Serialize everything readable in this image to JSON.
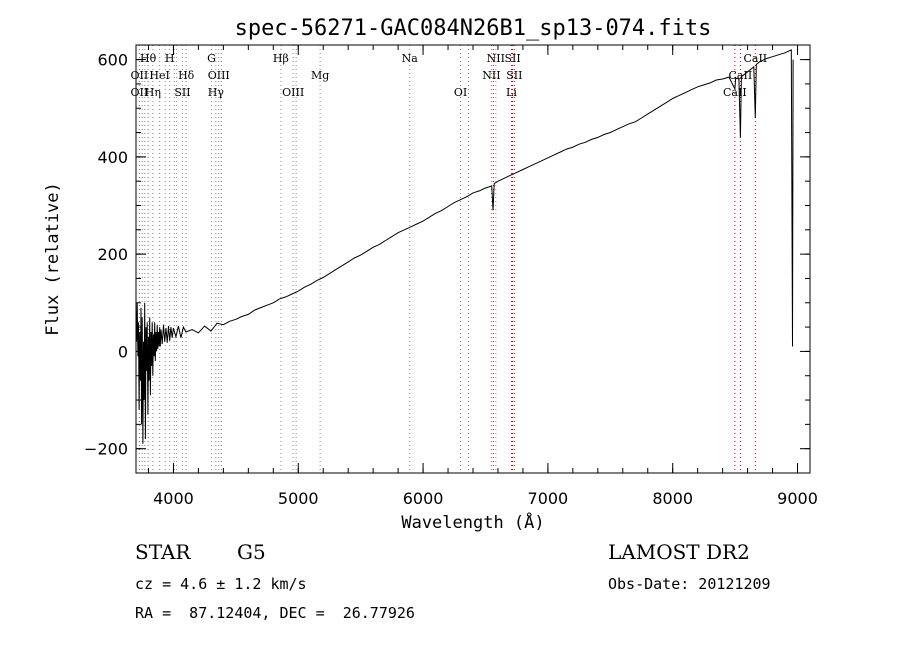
{
  "chart_data": {
    "type": "line",
    "title": "spec-56271-GAC084N26B1_sp13-074.fits",
    "xlabel": "Wavelength (Å)",
    "ylabel": "Flux (relative)",
    "xlim": [
      3700,
      9100
    ],
    "ylim": [
      -250,
      630
    ],
    "xticks": [
      4000,
      5000,
      6000,
      7000,
      8000,
      9000
    ],
    "yticks": [
      -200,
      0,
      200,
      400,
      600
    ],
    "x_minor_step": 200,
    "y_minor_step": 50,
    "grid": false,
    "series": [
      {
        "points": [
          [
            3700,
            80
          ],
          [
            3705,
            20
          ],
          [
            3710,
            100
          ],
          [
            3715,
            -10
          ],
          [
            3720,
            60
          ],
          [
            3725,
            -120
          ],
          [
            3730,
            40
          ],
          [
            3735,
            -60
          ],
          [
            3740,
            90
          ],
          [
            3745,
            -150
          ],
          [
            3750,
            70
          ],
          [
            3755,
            -190
          ],
          [
            3760,
            20
          ],
          [
            3765,
            -100
          ],
          [
            3770,
            100
          ],
          [
            3775,
            -180
          ],
          [
            3780,
            50
          ],
          [
            3785,
            -40
          ],
          [
            3790,
            60
          ],
          [
            3795,
            -130
          ],
          [
            3800,
            30
          ],
          [
            3805,
            -60
          ],
          [
            3810,
            70
          ],
          [
            3815,
            -90
          ],
          [
            3820,
            40
          ],
          [
            3825,
            -30
          ],
          [
            3830,
            60
          ],
          [
            3835,
            -50
          ],
          [
            3840,
            35
          ],
          [
            3845,
            -10
          ],
          [
            3850,
            60
          ],
          [
            3855,
            -20
          ],
          [
            3860,
            40
          ],
          [
            3865,
            0
          ],
          [
            3870,
            55
          ],
          [
            3875,
            5
          ],
          [
            3880,
            40
          ],
          [
            3885,
            10
          ],
          [
            3890,
            50
          ],
          [
            3895,
            10
          ],
          [
            3900,
            45
          ],
          [
            3910,
            15
          ],
          [
            3920,
            55
          ],
          [
            3930,
            20
          ],
          [
            3940,
            48
          ],
          [
            3950,
            18
          ],
          [
            3960,
            52
          ],
          [
            3970,
            22
          ],
          [
            3980,
            50
          ],
          [
            3990,
            28
          ],
          [
            4000,
            48
          ],
          [
            4020,
            30
          ],
          [
            4040,
            52
          ],
          [
            4060,
            28
          ],
          [
            4080,
            50
          ],
          [
            4100,
            40
          ],
          [
            4150,
            45
          ],
          [
            4200,
            38
          ],
          [
            4250,
            52
          ],
          [
            4300,
            42
          ],
          [
            4350,
            58
          ],
          [
            4400,
            55
          ],
          [
            4450,
            62
          ],
          [
            4500,
            66
          ],
          [
            4550,
            72
          ],
          [
            4600,
            76
          ],
          [
            4650,
            85
          ],
          [
            4700,
            90
          ],
          [
            4750,
            95
          ],
          [
            4800,
            100
          ],
          [
            4850,
            108
          ],
          [
            4900,
            112
          ],
          [
            4950,
            118
          ],
          [
            5000,
            124
          ],
          [
            5050,
            132
          ],
          [
            5100,
            138
          ],
          [
            5150,
            146
          ],
          [
            5200,
            152
          ],
          [
            5250,
            160
          ],
          [
            5300,
            168
          ],
          [
            5350,
            176
          ],
          [
            5400,
            184
          ],
          [
            5450,
            192
          ],
          [
            5500,
            198
          ],
          [
            5550,
            206
          ],
          [
            5600,
            214
          ],
          [
            5650,
            220
          ],
          [
            5700,
            228
          ],
          [
            5750,
            236
          ],
          [
            5800,
            244
          ],
          [
            5850,
            250
          ],
          [
            5900,
            256
          ],
          [
            5950,
            262
          ],
          [
            6000,
            268
          ],
          [
            6050,
            276
          ],
          [
            6100,
            284
          ],
          [
            6150,
            290
          ],
          [
            6200,
            298
          ],
          [
            6250,
            306
          ],
          [
            6300,
            312
          ],
          [
            6350,
            318
          ],
          [
            6400,
            326
          ],
          [
            6450,
            330
          ],
          [
            6500,
            336
          ],
          [
            6550,
            340
          ],
          [
            6560,
            290
          ],
          [
            6570,
            345
          ],
          [
            6600,
            350
          ],
          [
            6650,
            356
          ],
          [
            6700,
            362
          ],
          [
            6750,
            368
          ],
          [
            6800,
            374
          ],
          [
            6850,
            380
          ],
          [
            6900,
            386
          ],
          [
            6950,
            392
          ],
          [
            7000,
            398
          ],
          [
            7050,
            404
          ],
          [
            7100,
            410
          ],
          [
            7150,
            416
          ],
          [
            7200,
            420
          ],
          [
            7250,
            426
          ],
          [
            7300,
            430
          ],
          [
            7350,
            436
          ],
          [
            7400,
            440
          ],
          [
            7450,
            446
          ],
          [
            7500,
            450
          ],
          [
            7550,
            456
          ],
          [
            7600,
            462
          ],
          [
            7650,
            468
          ],
          [
            7700,
            472
          ],
          [
            7750,
            480
          ],
          [
            7800,
            488
          ],
          [
            7850,
            496
          ],
          [
            7900,
            504
          ],
          [
            7950,
            512
          ],
          [
            8000,
            520
          ],
          [
            8050,
            526
          ],
          [
            8100,
            532
          ],
          [
            8150,
            538
          ],
          [
            8200,
            544
          ],
          [
            8250,
            548
          ],
          [
            8300,
            552
          ],
          [
            8350,
            558
          ],
          [
            8400,
            560
          ],
          [
            8450,
            564
          ],
          [
            8498,
            540
          ],
          [
            8505,
            562
          ],
          [
            8530,
            560
          ],
          [
            8542,
            440
          ],
          [
            8550,
            565
          ],
          [
            8600,
            575
          ],
          [
            8650,
            585
          ],
          [
            8662,
            480
          ],
          [
            8670,
            590
          ],
          [
            8700,
            596
          ],
          [
            8750,
            602
          ],
          [
            8800,
            606
          ],
          [
            8850,
            610
          ],
          [
            8900,
            614
          ],
          [
            8950,
            620
          ],
          [
            8960,
            10
          ],
          [
            8965,
            600
          ]
        ]
      }
    ],
    "line_markers": [
      {
        "label": "Hθ",
        "x": 3797,
        "tier": 0,
        "color": "#888888"
      },
      {
        "label": "H",
        "x": 3970,
        "tier": 0,
        "color": "#888888"
      },
      {
        "label": "G",
        "x": 4305,
        "tier": 0,
        "color": "#888888"
      },
      {
        "label": "Hβ",
        "x": 4861,
        "tier": 0,
        "color": "#888888"
      },
      {
        "label": "Na",
        "x": 5893,
        "tier": 0,
        "color": "#888888"
      },
      {
        "label": "NII",
        "x": 6583,
        "tier": 0,
        "color": "#888888"
      },
      {
        "label": "SII",
        "x": 6717,
        "tier": 0,
        "color": "#cc0000"
      },
      {
        "label": "CaII",
        "x": 8662,
        "tier": 0,
        "color": "#cc0000"
      },
      {
        "label": "OII",
        "x": 3727,
        "tier": 1,
        "color": "#888888"
      },
      {
        "label": "HeI",
        "x": 3889,
        "tier": 1,
        "color": "#888888"
      },
      {
        "label": "Hδ",
        "x": 4102,
        "tier": 1,
        "color": "#888888"
      },
      {
        "label": "OIII",
        "x": 4363,
        "tier": 1,
        "color": "#888888"
      },
      {
        "label": "Mg",
        "x": 5175,
        "tier": 1,
        "color": "#888888"
      },
      {
        "label": "NII",
        "x": 6548,
        "tier": 1,
        "color": "#888888"
      },
      {
        "label": "SII",
        "x": 6731,
        "tier": 1,
        "color": "#cc0000"
      },
      {
        "label": "CaII",
        "x": 8542,
        "tier": 1,
        "color": "#cc0000"
      },
      {
        "label": "OII",
        "x": 3727,
        "tier": 2,
        "color": "#888888"
      },
      {
        "label": "Hη",
        "x": 3835,
        "tier": 2,
        "color": "#888888"
      },
      {
        "label": "SII",
        "x": 4072,
        "tier": 2,
        "color": "#888888"
      },
      {
        "label": "Hγ",
        "x": 4340,
        "tier": 2,
        "color": "#888888"
      },
      {
        "label": "OIII",
        "x": 4959,
        "tier": 2,
        "color": "#888888"
      },
      {
        "label": "OI",
        "x": 6300,
        "tier": 2,
        "color": "#888888"
      },
      {
        "label": "Li",
        "x": 6708,
        "tier": 2,
        "color": "#cc0000"
      },
      {
        "label": "CaII",
        "x": 8498,
        "tier": 2,
        "color": "#cc0000"
      }
    ],
    "extra_marker_lines": [
      {
        "x": 3750,
        "color": "#888888"
      },
      {
        "x": 3771,
        "color": "#888888"
      },
      {
        "x": 3798,
        "color": "#888888"
      },
      {
        "x": 3934,
        "color": "#888888"
      },
      {
        "x": 4006,
        "color": "#888888"
      },
      {
        "x": 4026,
        "color": "#888888"
      },
      {
        "x": 4384,
        "color": "#888888"
      },
      {
        "x": 4983,
        "color": "#888888"
      },
      {
        "x": 6364,
        "color": "#888888"
      },
      {
        "x": 6563,
        "color": "#cc0000"
      }
    ]
  },
  "info": {
    "object_class": "STAR",
    "subclass": "G5",
    "survey": "LAMOST DR2",
    "cz": "cz = 4.6 ± 1.2 km/s",
    "obs_date": "Obs-Date: 20121209",
    "coords": "RA =  87.12404, DEC =  26.77926"
  }
}
